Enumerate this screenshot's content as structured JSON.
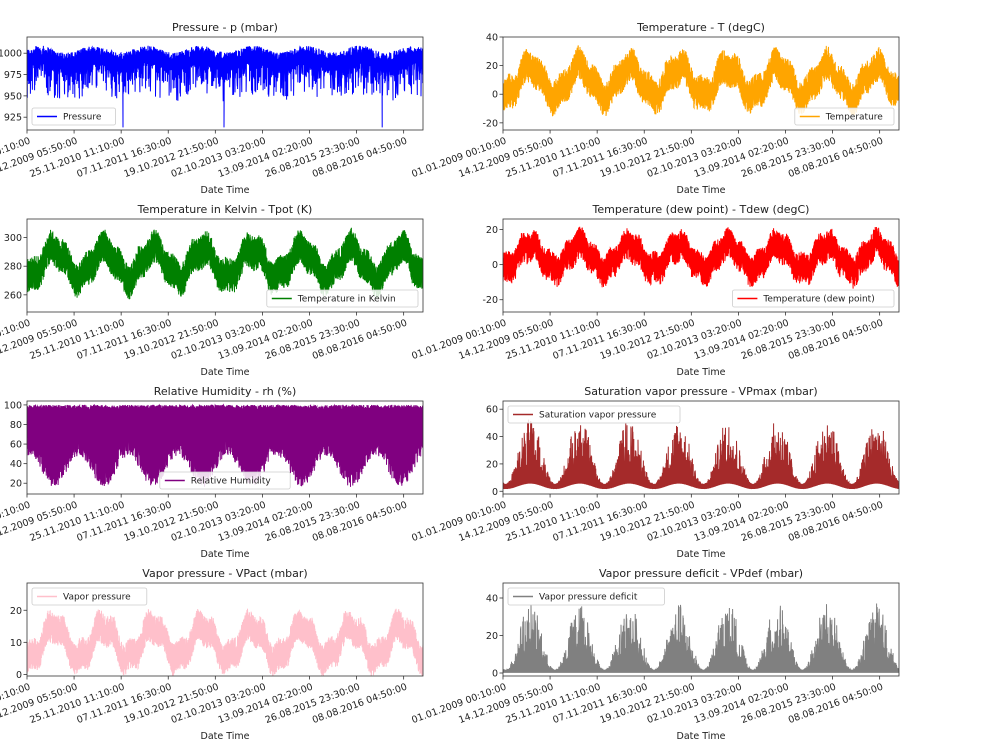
{
  "chart_data": [
    {
      "type": "line",
      "title": "Pressure - p (mbar)",
      "xlabel": "Date Time",
      "legend": "Pressure",
      "legend_loc": "lower left",
      "color": "#0000ff",
      "ylim": [
        910,
        1019
      ],
      "yticks": [
        925,
        950,
        975,
        1000
      ],
      "approx_range": [
        913,
        1015
      ]
    },
    {
      "type": "line",
      "title": "Temperature - T (degC)",
      "xlabel": "Date Time",
      "legend": "Temperature",
      "legend_loc": "lower right",
      "color": "#ffa500",
      "ylim": [
        -25,
        40
      ],
      "yticks": [
        -20,
        0,
        20,
        40
      ],
      "approx_range": [
        -23,
        37
      ]
    },
    {
      "type": "line",
      "title": "Temperature in Kelvin - Tpot (K)",
      "xlabel": "Date Time",
      "legend": "Temperature in Kelvin",
      "legend_loc": "lower right",
      "color": "#008000",
      "ylim": [
        248,
        313
      ],
      "yticks": [
        260,
        280,
        300
      ],
      "approx_range": [
        250,
        311
      ]
    },
    {
      "type": "line",
      "title": "Temperature (dew point) - Tdew (degC)",
      "xlabel": "Date Time",
      "legend": "Temperature (dew point)",
      "legend_loc": "lower right",
      "color": "#ff0000",
      "ylim": [
        -27,
        26
      ],
      "yticks": [
        -20,
        0,
        20
      ],
      "approx_range": [
        -25,
        23
      ]
    },
    {
      "type": "line",
      "title": "Relative Humidity - rh (%)",
      "xlabel": "Date Time",
      "legend": "Relative Humidity",
      "legend_loc": "lower center",
      "color": "#800080",
      "ylim": [
        9,
        104
      ],
      "yticks": [
        20,
        40,
        60,
        80,
        100
      ],
      "approx_range": [
        13,
        100
      ]
    },
    {
      "type": "line",
      "title": "Saturation vapor pressure - VPmax (mbar)",
      "xlabel": "Date Time",
      "legend": "Saturation vapor pressure",
      "legend_loc": "upper left",
      "color": "#a52a2a",
      "ylim": [
        -2,
        66
      ],
      "yticks": [
        0,
        20,
        40,
        60
      ],
      "approx_range": [
        1,
        63
      ]
    },
    {
      "type": "line",
      "title": "Vapor pressure - VPact (mbar)",
      "xlabel": "Date Time",
      "legend": "Vapor pressure",
      "legend_loc": "upper left",
      "color": "#ffc0cb",
      "ylim": [
        -0.5,
        28.5
      ],
      "yticks": [
        0,
        10,
        20
      ],
      "approx_range": [
        0.8,
        28
      ]
    },
    {
      "type": "line",
      "title": "Vapor pressure deficit - VPdef (mbar)",
      "xlabel": "Date Time",
      "legend": "Vapor pressure deficit",
      "legend_loc": "upper left",
      "color": "#808080",
      "ylim": [
        -1.6,
        48
      ],
      "yticks": [
        0,
        20,
        40
      ],
      "approx_range": [
        0,
        46
      ]
    }
  ],
  "x_axis": {
    "xlim": [
      0,
      420551
    ],
    "tick_positions": [
      0,
      50000,
      100000,
      150000,
      200000,
      250000,
      300000,
      350000,
      400000
    ],
    "tick_labels": [
      "01.01.2009 00:10:00",
      "14.12.2009 05:50:00",
      "25.11.2010 11:10:00",
      "07.11.2011 16:30:00",
      "19.10.2012 21:50:00",
      "02.10.2013 03:20:00",
      "13.09.2014 02:20:00",
      "26.08.2015 23:30:00",
      "08.08.2016 04:50:00"
    ]
  },
  "grid": false
}
